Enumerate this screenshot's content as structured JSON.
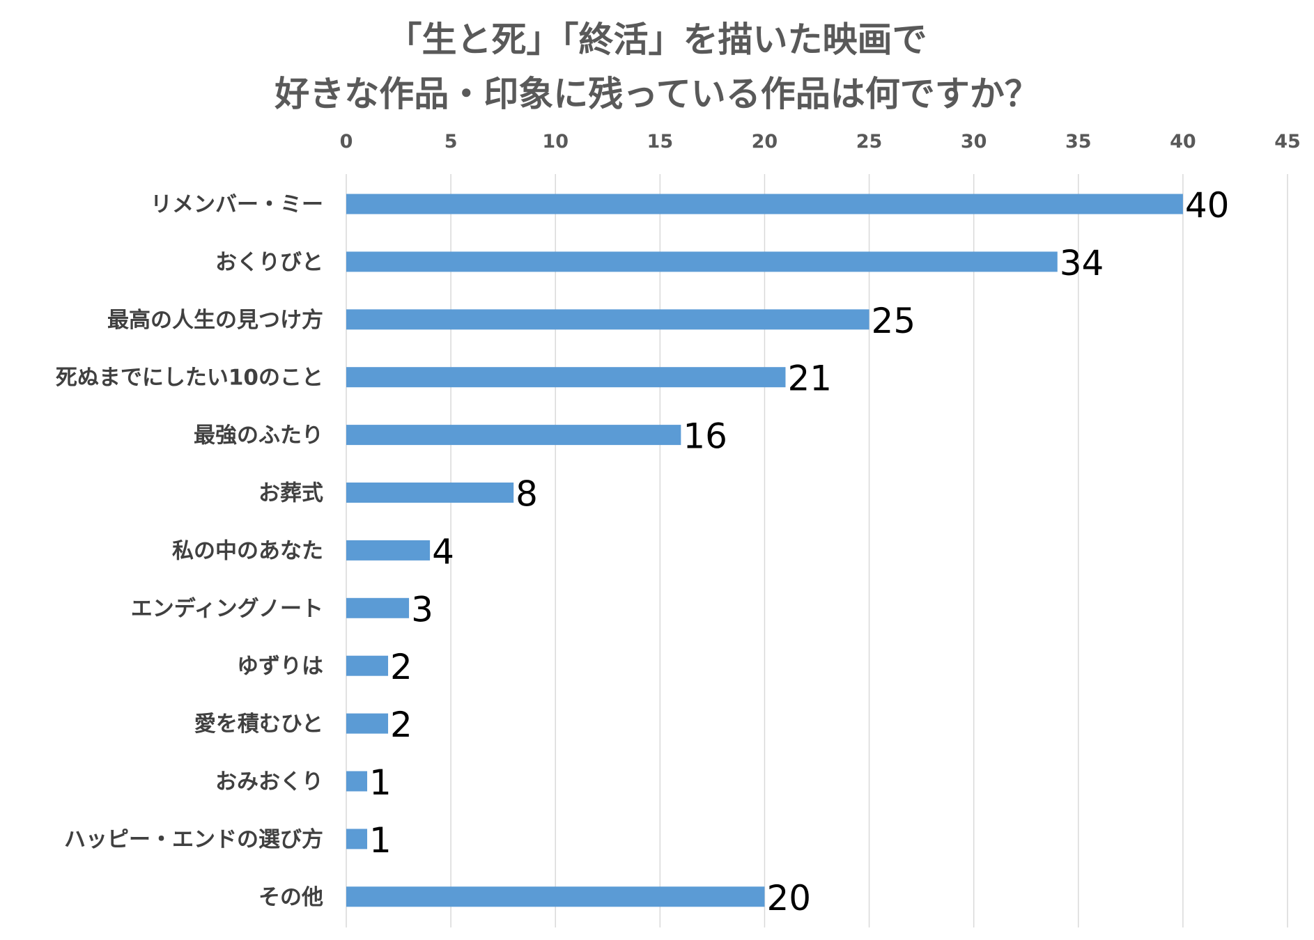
{
  "chart_data": {
    "type": "bar",
    "orientation": "horizontal",
    "title_lines": [
      "「生と死」「終活」を描いた映画で",
      "好きな作品・印象に残っている作品は何ですか？"
    ],
    "categories": [
      "リメンバー・ミー",
      "おくりびと",
      "最高の人生の見つけ方",
      "死ぬまでにしたい10のこと",
      "最強のふたり",
      "お葬式",
      "私の中のあなた",
      "エンディングノート",
      "ゆずりは",
      "愛を積むひと",
      "おみおくり",
      "ハッピー・エンドの選び方",
      "その他"
    ],
    "values": [
      40,
      34,
      25,
      21,
      16,
      8,
      4,
      3,
      2,
      2,
      1,
      1,
      20
    ],
    "xlim": [
      0,
      45
    ],
    "x_ticks": [
      0,
      5,
      10,
      15,
      20,
      25,
      30,
      35,
      40,
      45
    ],
    "x_axis_position": "top",
    "grid": true,
    "legend": "none",
    "xlabel": "",
    "ylabel": "",
    "colors": {
      "bar": "#5b9bd5",
      "grid": "#d9d9d9",
      "title": "#595959",
      "category_text": "#404040",
      "tick_text": "#595959",
      "data_label": "#000000"
    }
  }
}
